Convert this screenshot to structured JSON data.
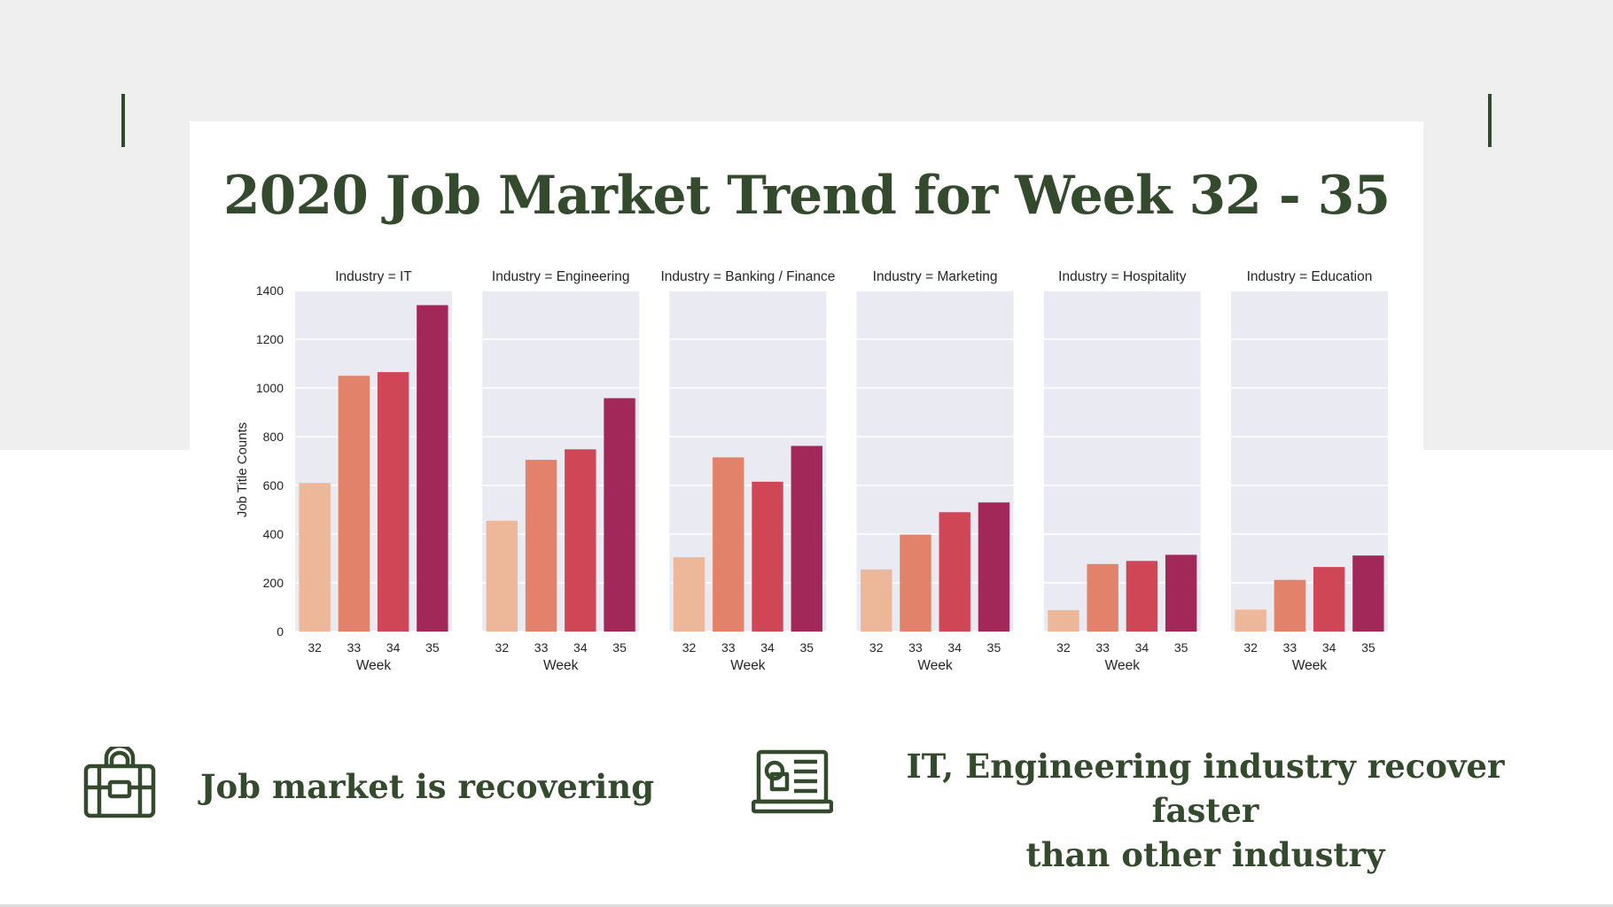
{
  "slide": {
    "title": "2020 Job Market Trend for Week 32 - 35"
  },
  "chart_data": {
    "type": "bar",
    "ylabel": "Job Title Counts",
    "xlabel": "Week",
    "ylim": [
      0,
      1400
    ],
    "yticks": [
      0,
      200,
      400,
      600,
      800,
      1000,
      1200,
      1400
    ],
    "categories": [
      "32",
      "33",
      "34",
      "35"
    ],
    "colors": [
      "#edb89a",
      "#e2826a",
      "#cf4756",
      "#a2285a"
    ],
    "grid": true,
    "panels": [
      {
        "title": "Industry = IT",
        "values": [
          610,
          1050,
          1065,
          1340
        ]
      },
      {
        "title": "Industry = Engineering",
        "values": [
          455,
          705,
          748,
          958
        ]
      },
      {
        "title": "Industry = Banking / Finance",
        "values": [
          305,
          715,
          615,
          762
        ]
      },
      {
        "title": "Industry = Marketing",
        "values": [
          255,
          398,
          490,
          530
        ]
      },
      {
        "title": "Industry = Hospitality",
        "values": [
          88,
          277,
          290,
          315
        ]
      },
      {
        "title": "Industry = Education",
        "values": [
          90,
          212,
          265,
          312
        ]
      }
    ]
  },
  "insights": [
    {
      "icon": "briefcase-icon",
      "text": "Job market is recovering"
    },
    {
      "icon": "laptop-icon",
      "lines": [
        "IT, Engineering industry recover faster",
        "than other industry"
      ]
    }
  ],
  "colors": {
    "accent": "#334a2c",
    "band": "#efefef",
    "panel_bg": "#eaeaf2"
  }
}
